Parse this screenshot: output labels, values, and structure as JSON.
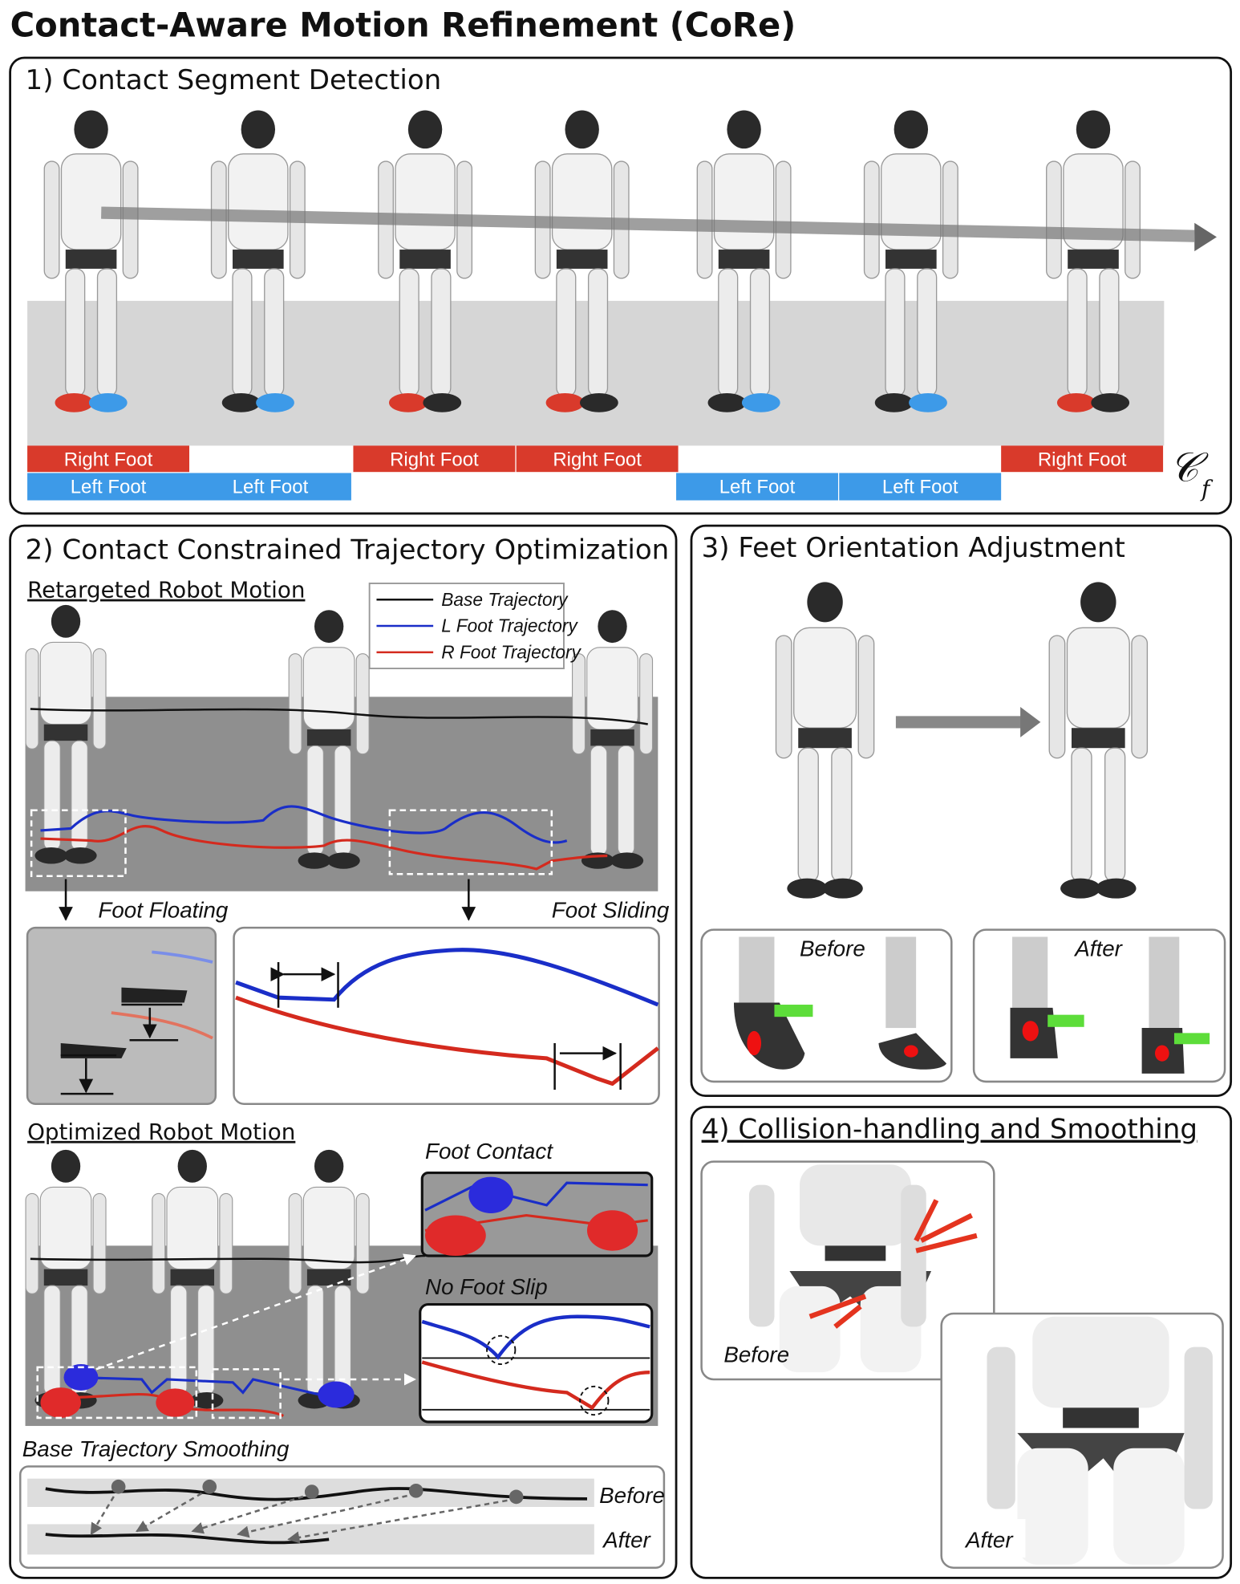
{
  "title": "Contact-Aware Motion Refinement (CoRe)",
  "panel1": {
    "title": "1) Contact Segment Detection",
    "right_foot_labels": [
      "Right Foot",
      "Right Foot",
      "Right Foot",
      "Right Foot"
    ],
    "left_foot_labels": [
      "Left Foot",
      "Left Foot",
      "Left Foot",
      "Left Foot"
    ],
    "symbol": "𝒞",
    "symbol_subscript": "f"
  },
  "panel2": {
    "title": "2) Contact Constrained Trajectory Optimization",
    "retargeted": "Retargeted Robot Motion",
    "legend": [
      "Base  Trajectory",
      "L Foot Trajectory",
      "R Foot Trajectory"
    ],
    "foot_floating": "Foot Floating",
    "foot_sliding": "Foot Sliding",
    "optimized": "Optimized Robot Motion",
    "foot_contact": "Foot Contact",
    "no_foot_slip": "No Foot Slip",
    "smoothing": "Base Trajectory Smoothing",
    "before": "Before",
    "after": "After"
  },
  "panel3": {
    "title": "3) Feet Orientation Adjustment",
    "before": "Before",
    "after": "After"
  },
  "panel4": {
    "title": "4) Collision-handling and Smoothing",
    "before": "Before",
    "after": "After"
  }
}
